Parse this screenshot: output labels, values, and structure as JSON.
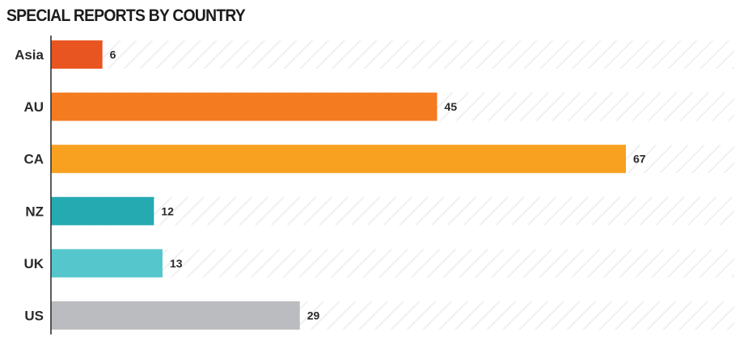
{
  "chart_data": {
    "type": "bar",
    "orientation": "horizontal",
    "title": "SPECIAL REPORTS BY COUNTRY",
    "categories": [
      "Asia",
      "AU",
      "CA",
      "NZ",
      "UK",
      "US"
    ],
    "values": [
      6,
      45,
      67,
      12,
      13,
      29
    ],
    "colors": [
      "#e85520",
      "#f47b20",
      "#f8a020",
      "#25aab2",
      "#55c6cc",
      "#bbbcbf"
    ],
    "track_pattern": "diagonal-hatch",
    "track_color": "#e9e9e9",
    "axis_color": "#333333",
    "xlim": [
      0,
      80
    ],
    "grid": false,
    "legend": "none"
  }
}
